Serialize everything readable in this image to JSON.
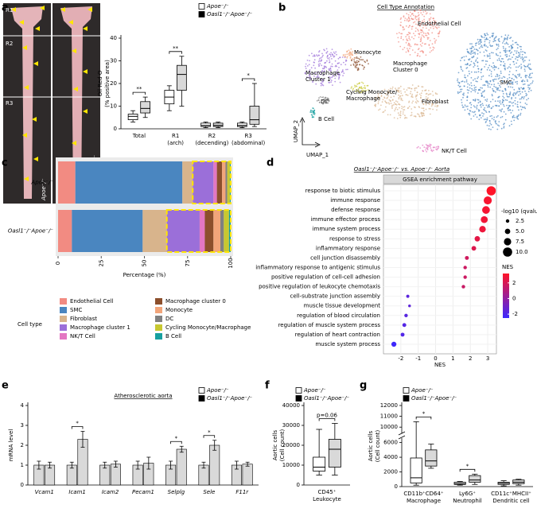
{
  "chart_data": [
    {
      "panel": "a",
      "type": "box",
      "photo_labels": [
        "R1",
        "R2",
        "R3"
      ],
      "photo_captions": [
        "Apoe⁻/⁻",
        "Oasl1⁻/⁻Apoe⁻/⁻"
      ],
      "ylabel": [
        "Oil Red O",
        "(% positive area)"
      ],
      "categories": [
        [
          "Total"
        ],
        [
          "R1",
          "(arch)"
        ],
        [
          "R2",
          "(decending)"
        ],
        [
          "R3",
          "(abdominal)"
        ]
      ],
      "series": [
        {
          "name": "Apoe⁻/⁻",
          "color": "#ffffff",
          "marker_color": "#ffffff",
          "values": [
            {
              "min": 3,
              "q1": 4,
              "median": 5.5,
              "q3": 6.5,
              "max": 8
            },
            {
              "min": 8,
              "q1": 11,
              "median": 14,
              "q3": 17,
              "max": 19
            },
            {
              "min": 0.5,
              "q1": 1,
              "median": 1.5,
              "q3": 2.5,
              "max": 3
            },
            {
              "min": 0.5,
              "q1": 1,
              "median": 1.5,
              "q3": 2.5,
              "max": 3
            }
          ]
        },
        {
          "name": "Oasl1⁻/⁻Apoe⁻/⁻",
          "color": "#d9d9d9",
          "marker_color": "#000000",
          "values": [
            {
              "min": 5,
              "q1": 7,
              "median": 9,
              "q3": 12,
              "max": 14
            },
            {
              "min": 10,
              "q1": 17,
              "median": 24,
              "q3": 28,
              "max": 32
            },
            {
              "min": 0.5,
              "q1": 1,
              "median": 1.5,
              "q3": 2.5,
              "max": 3
            },
            {
              "min": 1,
              "q1": 2,
              "median": 4,
              "q3": 10,
              "max": 20
            }
          ]
        }
      ],
      "ylim": [
        0,
        40
      ],
      "yticks": [
        0,
        10,
        20,
        30,
        40
      ],
      "significance": [
        {
          "category": "Total",
          "text": "**"
        },
        {
          "category": "R1",
          "text": "**"
        },
        {
          "category": "R3",
          "text": "*"
        }
      ]
    },
    {
      "panel": "b",
      "type": "umap",
      "title": "Cell Type Annotation",
      "xlabel": "UMAP_1",
      "ylabel": "UMAP_2",
      "clusters": [
        {
          "label": [
            "Endothelial Cell"
          ],
          "color": "#f28b82"
        },
        {
          "label": [
            "SMC"
          ],
          "color": "#4a86c0"
        },
        {
          "label": [
            "Fibroblast"
          ],
          "color": "#d8b48c"
        },
        {
          "label": [
            "Macrophage",
            "Cluster 1"
          ],
          "color": "#9b6fd9"
        },
        {
          "label": [
            "NK/T Cell"
          ],
          "color": "#e377c2"
        },
        {
          "label": [
            "Macrophage",
            "Cluster 0"
          ],
          "color": "#8c4f2c"
        },
        {
          "label": [
            "Monocyte"
          ],
          "color": "#f2a57a"
        },
        {
          "label": [
            "DC"
          ],
          "color": "#808080"
        },
        {
          "label": [
            "Cycling Monocyte/",
            "Macrophage"
          ],
          "color": "#c8c830"
        },
        {
          "label": [
            "B Cell"
          ],
          "color": "#17a0a0"
        }
      ]
    },
    {
      "panel": "c",
      "type": "stacked-barh",
      "categories": [
        "Apoe⁻/⁻",
        "Oasl1⁻/⁻Apoe⁻/⁻"
      ],
      "xlabel": "Percentage (%)",
      "xlim": [
        0,
        100
      ],
      "xticks": [
        0,
        25,
        50,
        75,
        100
      ],
      "legend_title": "Cell type",
      "highlight": "Macrophage cluster 1",
      "highlight_color": "#ffe600",
      "series": [
        {
          "name": "Endothelial Cell",
          "color": "#f28b82",
          "values": [
            10,
            8
          ]
        },
        {
          "name": "SMC",
          "color": "#4a86c0",
          "values": [
            62,
            41
          ]
        },
        {
          "name": "Fibroblast",
          "color": "#d8b48c",
          "values": [
            6,
            14
          ]
        },
        {
          "name": "Macrophage cluster 1",
          "color": "#9b6fd9",
          "values": [
            12,
            19
          ]
        },
        {
          "name": "NK/T Cell",
          "color": "#e377c2",
          "values": [
            2,
            3
          ]
        },
        {
          "name": "Macrophage cluster 0",
          "color": "#8c4f2c",
          "values": [
            3,
            5
          ]
        },
        {
          "name": "Monocyte",
          "color": "#f2a57a",
          "values": [
            2,
            4
          ]
        },
        {
          "name": "DC",
          "color": "#808080",
          "values": [
            1,
            2
          ]
        },
        {
          "name": "Cycling Monocyte/Macrophage",
          "color": "#c8c830",
          "values": [
            1.5,
            3
          ]
        },
        {
          "name": "B Cell",
          "color": "#17a0a0",
          "values": [
            0.5,
            1
          ]
        }
      ]
    },
    {
      "panel": "d",
      "type": "dot",
      "title": "Oasl1⁻/⁻Apoe⁻/⁻ vs. Apoe⁻/⁻ Aorta",
      "subtitle": "GSEA enrichment pathway",
      "xlabel": "NES",
      "categories": [
        "response to biotic stimulus",
        "immune response",
        "defense response",
        "immune effector process",
        "immune system process",
        "response to stress",
        "inflammatory response",
        "cell junction disassembly",
        "inflammatory response to antigenic stimulus",
        "positive regulation of cell-cell adhesion",
        "positive regulation of leukocyte chemotaxis",
        "cell-substrate junction assembly",
        "muscle tissue development",
        "regulation of blood circulation",
        "regulation of muscle system process",
        "regulation of heart contraction",
        "muscle system process"
      ],
      "values": [
        3.2,
        3.0,
        2.9,
        2.8,
        2.7,
        2.4,
        2.2,
        1.8,
        1.7,
        1.7,
        1.6,
        -1.6,
        -1.5,
        -1.7,
        -1.8,
        -1.9,
        -2.4
      ],
      "sizes": [
        10,
        8.5,
        8,
        7,
        6.5,
        5,
        4,
        3,
        2.5,
        2.5,
        2.5,
        2,
        1.5,
        2.5,
        3,
        3,
        4.5
      ],
      "xlim": [
        -3,
        3.5
      ],
      "xticks": [
        -2,
        -1,
        0,
        1,
        2,
        3
      ],
      "size_legend_title": "-log10 (qvalues)",
      "size_ticks": [
        2.5,
        {
          "value": 5,
          "label": "5.0"
        },
        7.5,
        {
          "value": 10,
          "label": "10.0"
        }
      ],
      "color_legend_title": "NES",
      "clim": [
        -2.5,
        3.2
      ],
      "color_ticks": [
        2,
        0,
        -2
      ],
      "colorscale": [
        "#3c28ff",
        "#ff1428"
      ]
    },
    {
      "panel": "e",
      "type": "bar",
      "title": "Atherosclerotic aorta",
      "ylabel": [
        "mRNA level"
      ],
      "categories": [
        "Vcam1",
        "Icam1",
        "Icam2",
        "Pecam1",
        "Selplg",
        "Sele",
        "F11r"
      ],
      "series": [
        {
          "name": "Apoe⁻/⁻",
          "color": "#d9d9d9",
          "marker_color": "#ffffff",
          "values": [
            1,
            1,
            1,
            1,
            1,
            1,
            1
          ],
          "errors": [
            0.2,
            0.15,
            0.15,
            0.2,
            0.2,
            0.15,
            0.2
          ]
        },
        {
          "name": "Oasl1⁻/⁻Apoe⁻/⁻",
          "color": "#d9d9d9",
          "marker_color": "#000000",
          "values": [
            1,
            2.3,
            1.05,
            1.1,
            1.8,
            2.0,
            1.05
          ],
          "errors": [
            0.15,
            0.4,
            0.15,
            0.3,
            0.15,
            0.25,
            0.1
          ]
        }
      ],
      "ylim": [
        0,
        4
      ],
      "yticks": [
        0,
        1,
        2,
        3,
        4
      ],
      "significance": [
        {
          "category": "Icam1",
          "text": "*"
        },
        {
          "category": "Selplg",
          "text": "*"
        },
        {
          "category": "Sele",
          "text": "*"
        }
      ]
    },
    {
      "panel": "f",
      "type": "box",
      "ylabel": [
        "Aortic cells",
        "(Cell count)"
      ],
      "categories": [
        [
          "CD45⁺",
          "Leukocyte"
        ]
      ],
      "series": [
        {
          "name": "Apoe⁻/⁻",
          "color": "#ffffff",
          "marker_color": "#ffffff",
          "values": [
            {
              "min": 5000,
              "q1": 7000,
              "median": 9000,
              "q3": 14000,
              "max": 28000
            }
          ]
        },
        {
          "name": "Oasl1⁻/⁻Apoe⁻/⁻",
          "color": "#d9d9d9",
          "marker_color": "#000000",
          "values": [
            {
              "min": 5000,
              "q1": 9000,
              "median": 18000,
              "q3": 23000,
              "max": 31000
            }
          ]
        }
      ],
      "ylim": [
        0,
        40000
      ],
      "yticks": [
        0,
        10000,
        20000,
        30000,
        40000
      ],
      "significance": [
        {
          "category": "CD45⁺",
          "text": "p=0.06"
        }
      ]
    },
    {
      "panel": "g",
      "type": "box",
      "ylabel": [
        "Aortic cells",
        "(Cell count)"
      ],
      "categories": [
        [
          "CD11b⁺CD64⁺",
          "Macrophage"
        ],
        [
          "Ly6G⁺",
          "Neutrophil"
        ],
        [
          "CD11c⁺MHCII⁺",
          "Dendritic cell"
        ]
      ],
      "series": [
        {
          "name": "Apoe⁻/⁻",
          "color": "#ffffff",
          "marker_color": "#ffffff",
          "values": [
            {
              "min": 200,
              "q1": 500,
              "median": 1200,
              "q3": 3900,
              "max": 10500
            },
            {
              "min": 200,
              "q1": 300,
              "median": 400,
              "q3": 600,
              "max": 700
            },
            {
              "min": 100,
              "q1": 300,
              "median": 450,
              "q3": 600,
              "max": 800
            }
          ]
        },
        {
          "name": "Oasl1⁻/⁻Apoe⁻/⁻",
          "color": "#d9d9d9",
          "marker_color": "#000000",
          "values": [
            {
              "min": 2500,
              "q1": 2800,
              "median": 3500,
              "q3": 5000,
              "max": 5800
            },
            {
              "min": 300,
              "q1": 600,
              "median": 900,
              "q3": 1500,
              "max": 1700
            },
            {
              "min": 200,
              "q1": 400,
              "median": 600,
              "q3": 900,
              "max": 1000
            }
          ]
        }
      ],
      "ylim": [
        0,
        12000
      ],
      "ybreak": [
        6500,
        9500
      ],
      "yticks": [
        0,
        2000,
        4000,
        6000,
        10000,
        11000,
        12000
      ],
      "significance": [
        {
          "category": "CD11b⁺CD64⁺",
          "text": "*"
        },
        {
          "category": "Ly6G⁺",
          "text": "*"
        }
      ]
    }
  ]
}
